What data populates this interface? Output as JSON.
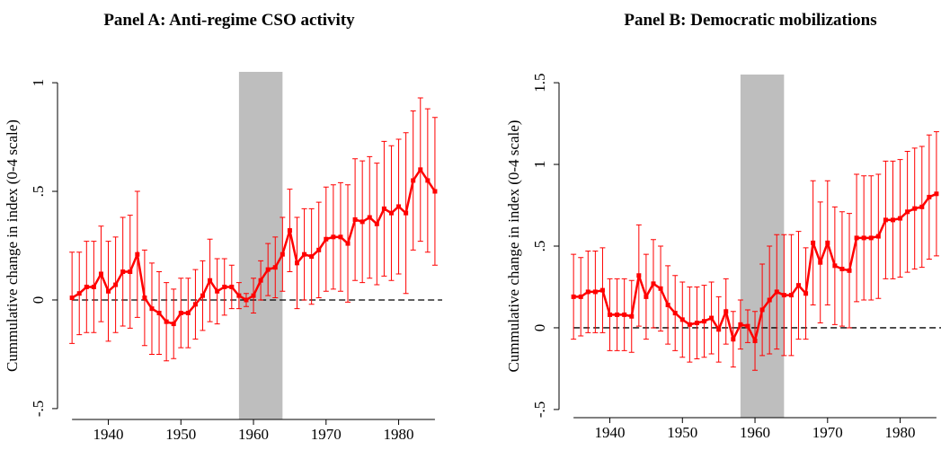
{
  "chart_data": [
    {
      "type": "line",
      "title": "Panel A: Anti-regime CSO activity",
      "ylabel": "Cummulative change in index (0-4 scale)",
      "x": [
        1935,
        1936,
        1937,
        1938,
        1939,
        1940,
        1941,
        1942,
        1943,
        1944,
        1945,
        1946,
        1947,
        1948,
        1949,
        1950,
        1951,
        1952,
        1953,
        1954,
        1955,
        1956,
        1957,
        1958,
        1959,
        1960,
        1961,
        1962,
        1963,
        1964,
        1965,
        1966,
        1967,
        1968,
        1969,
        1970,
        1971,
        1972,
        1973,
        1974,
        1975,
        1976,
        1977,
        1978,
        1979,
        1980,
        1981,
        1982,
        1983,
        1984,
        1985
      ],
      "values": [
        0.01,
        0.03,
        0.06,
        0.06,
        0.12,
        0.04,
        0.07,
        0.13,
        0.13,
        0.21,
        0.01,
        -0.04,
        -0.06,
        -0.1,
        -0.11,
        -0.06,
        -0.06,
        -0.02,
        0.02,
        0.09,
        0.04,
        0.06,
        0.06,
        0.02,
        0.0,
        0.02,
        0.09,
        0.14,
        0.15,
        0.21,
        0.32,
        0.17,
        0.21,
        0.2,
        0.23,
        0.28,
        0.29,
        0.29,
        0.26,
        0.37,
        0.36,
        0.38,
        0.35,
        0.42,
        0.4,
        0.43,
        0.4,
        0.55,
        0.6,
        0.55,
        0.5
      ],
      "errors": [
        0.21,
        0.19,
        0.21,
        0.21,
        0.22,
        0.23,
        0.22,
        0.25,
        0.26,
        0.29,
        0.22,
        0.21,
        0.19,
        0.18,
        0.16,
        0.16,
        0.16,
        0.16,
        0.16,
        0.19,
        0.15,
        0.13,
        0.1,
        0.06,
        0.03,
        0.08,
        0.09,
        0.12,
        0.14,
        0.17,
        0.19,
        0.21,
        0.21,
        0.22,
        0.22,
        0.24,
        0.24,
        0.25,
        0.27,
        0.28,
        0.28,
        0.28,
        0.28,
        0.31,
        0.31,
        0.31,
        0.37,
        0.32,
        0.33,
        0.33,
        0.34
      ],
      "color": "#ff0000",
      "shade": [
        1958,
        1964
      ],
      "hline": 0,
      "xlim": [
        1933,
        1986
      ],
      "xticks": [
        1940,
        1950,
        1960,
        1970,
        1980
      ],
      "ylim": [
        -0.55,
        1.05
      ],
      "yticks": [
        {
          "value": -0.5,
          "label": "-.5"
        },
        0,
        {
          "value": 0.5,
          "label": ".5"
        },
        1
      ]
    },
    {
      "type": "line",
      "title": "Panel B: Democratic mobilizations",
      "ylabel": "Cummulative change in index (0-4 scale)",
      "x": [
        1935,
        1936,
        1937,
        1938,
        1939,
        1940,
        1941,
        1942,
        1943,
        1944,
        1945,
        1946,
        1947,
        1948,
        1949,
        1950,
        1951,
        1952,
        1953,
        1954,
        1955,
        1956,
        1957,
        1958,
        1959,
        1960,
        1961,
        1962,
        1963,
        1964,
        1965,
        1966,
        1967,
        1968,
        1969,
        1970,
        1971,
        1972,
        1973,
        1974,
        1975,
        1976,
        1977,
        1978,
        1979,
        1980,
        1981,
        1982,
        1983,
        1984,
        1985
      ],
      "values": [
        0.19,
        0.19,
        0.22,
        0.22,
        0.23,
        0.08,
        0.08,
        0.08,
        0.07,
        0.32,
        0.19,
        0.27,
        0.24,
        0.14,
        0.09,
        0.05,
        0.02,
        0.03,
        0.04,
        0.06,
        -0.01,
        0.1,
        -0.07,
        0.02,
        0.01,
        -0.08,
        0.11,
        0.17,
        0.22,
        0.2,
        0.2,
        0.26,
        0.21,
        0.52,
        0.4,
        0.52,
        0.38,
        0.36,
        0.35,
        0.55,
        0.55,
        0.55,
        0.56,
        0.66,
        0.66,
        0.67,
        0.71,
        0.73,
        0.74,
        0.8,
        0.82
      ],
      "errors": [
        0.26,
        0.24,
        0.25,
        0.25,
        0.26,
        0.22,
        0.22,
        0.22,
        0.22,
        0.31,
        0.26,
        0.27,
        0.26,
        0.24,
        0.23,
        0.23,
        0.23,
        0.22,
        0.22,
        0.22,
        0.2,
        0.2,
        0.17,
        0.15,
        0.1,
        0.18,
        0.28,
        0.33,
        0.35,
        0.37,
        0.37,
        0.33,
        0.28,
        0.38,
        0.37,
        0.38,
        0.36,
        0.35,
        0.35,
        0.39,
        0.38,
        0.38,
        0.38,
        0.36,
        0.36,
        0.36,
        0.37,
        0.37,
        0.37,
        0.38,
        0.38
      ],
      "color": "#ff0000",
      "shade": [
        1958,
        1964
      ],
      "hline": 0,
      "xlim": [
        1933,
        1986
      ],
      "xticks": [
        1940,
        1950,
        1960,
        1970,
        1980
      ],
      "ylim": [
        -0.55,
        1.55
      ],
      "yticks": [
        {
          "value": -0.5,
          "label": "-.5"
        },
        0,
        {
          "value": 0.5,
          "label": ".5"
        },
        1,
        1.5
      ]
    }
  ]
}
